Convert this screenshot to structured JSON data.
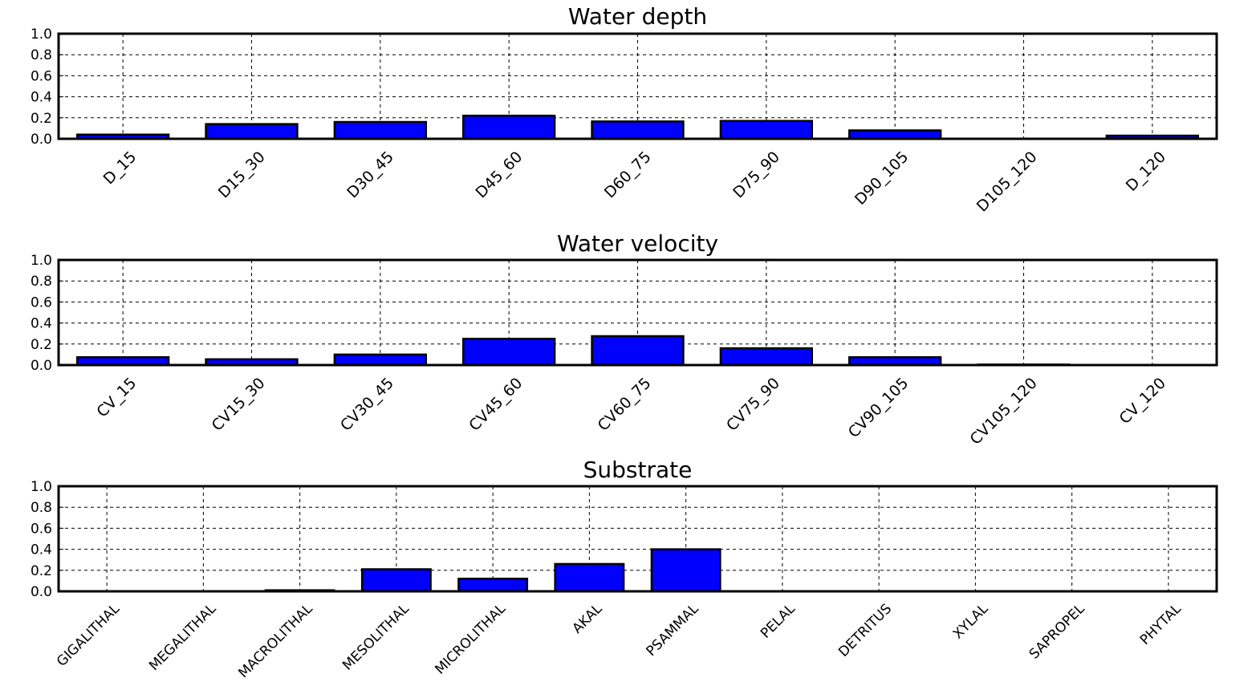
{
  "chart_data": [
    {
      "type": "bar",
      "title": "Water depth",
      "ylim": [
        0,
        1.0
      ],
      "yticks": [
        "0.0",
        "0.2",
        "0.4",
        "0.6",
        "0.8",
        "1.0"
      ],
      "grid": true,
      "bar_color": "#0000ff",
      "categories": [
        "D_15",
        "D15_30",
        "D30_45",
        "D45_60",
        "D60_75",
        "D75_90",
        "D90_105",
        "D105_120",
        "D_120"
      ],
      "values": [
        0.04,
        0.14,
        0.16,
        0.22,
        0.165,
        0.17,
        0.08,
        0.0,
        0.03
      ]
    },
    {
      "type": "bar",
      "title": "Water velocity",
      "ylim": [
        0,
        1.0
      ],
      "yticks": [
        "0.0",
        "0.2",
        "0.4",
        "0.6",
        "0.8",
        "1.0"
      ],
      "grid": true,
      "bar_color": "#0000ff",
      "categories": [
        "CV_15",
        "CV15_30",
        "CV30_45",
        "CV45_60",
        "CV60_75",
        "CV75_90",
        "CV90_105",
        "CV105_120",
        "CV_120"
      ],
      "values": [
        0.075,
        0.055,
        0.1,
        0.25,
        0.275,
        0.16,
        0.075,
        0.005,
        0.0
      ]
    },
    {
      "type": "bar",
      "title": "Substrate",
      "ylim": [
        0,
        1.0
      ],
      "yticks": [
        "0.0",
        "0.2",
        "0.4",
        "0.6",
        "0.8",
        "1.0"
      ],
      "grid": true,
      "bar_color": "#0000ff",
      "categories": [
        "GIGALITHAL",
        "MEGALITHAL",
        "MACROLITHAL",
        "MESOLITHAL",
        "MICROLITHAL",
        "AKAL",
        "PSAMMAL",
        "PELAL",
        "DETRITUS",
        "XYLAL",
        "SAPROPEL",
        "PHYTAL"
      ],
      "values": [
        0.0,
        0.0,
        0.01,
        0.21,
        0.12,
        0.26,
        0.4,
        0.0,
        0.0,
        0.0,
        0.0,
        0.0
      ]
    }
  ]
}
